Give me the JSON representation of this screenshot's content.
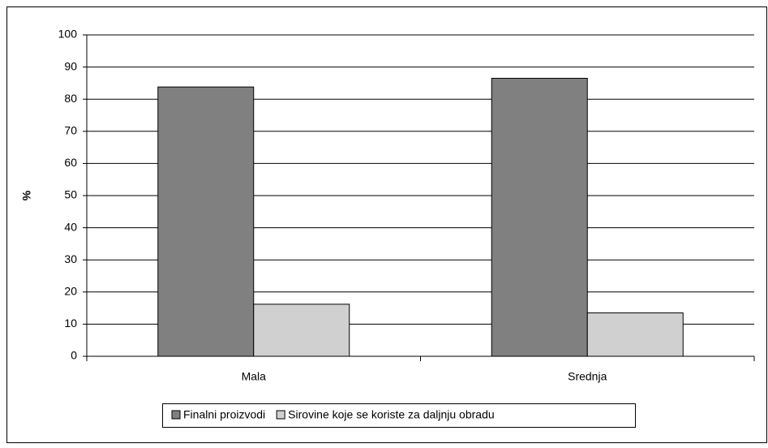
{
  "chart_data": {
    "type": "bar",
    "categories": [
      "Mala",
      "Srednja"
    ],
    "series": [
      {
        "name": "Finalni proizvodi",
        "color": "#808080",
        "values": [
          83.8,
          86.5
        ]
      },
      {
        "name": "Sirovine koje se koriste za daljnju obradu",
        "color": "#d0d0d0",
        "values": [
          16.2,
          13.5
        ]
      }
    ],
    "y_label": "%",
    "ylim": [
      0,
      100
    ],
    "yticks": [
      0,
      10,
      20,
      30,
      40,
      50,
      60,
      70,
      80,
      90,
      100
    ],
    "grid": true,
    "legend": "bottom"
  }
}
